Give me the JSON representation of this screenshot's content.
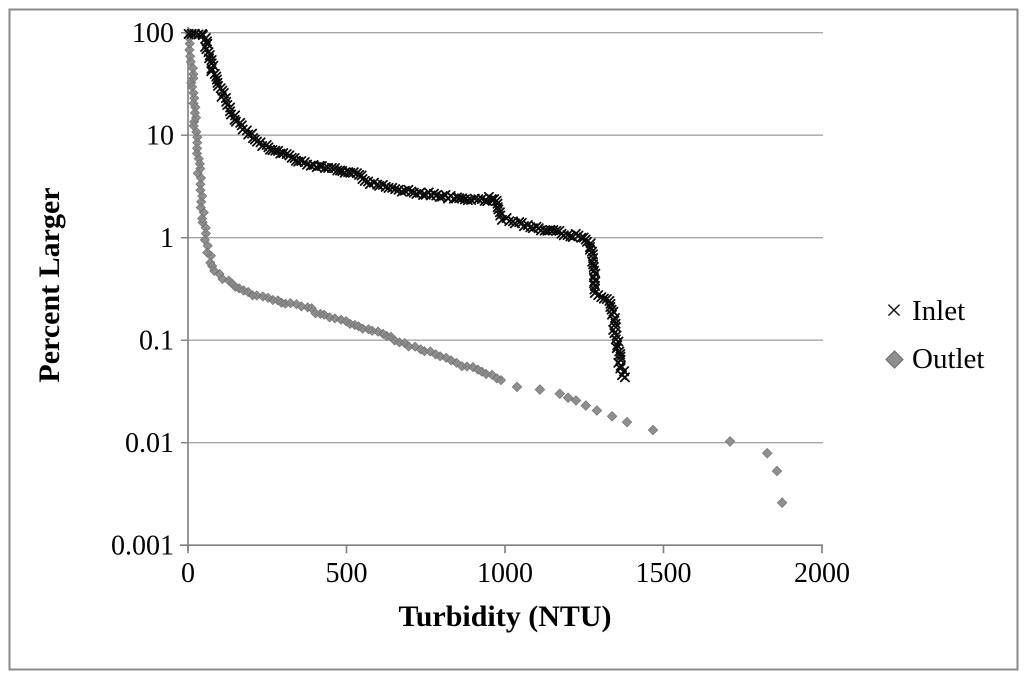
{
  "chart_data": {
    "type": "scatter",
    "title": "",
    "xlabel": "Turbidity (NTU)",
    "ylabel": "Percent Larger",
    "x_axis": {
      "min": 0,
      "max": 2000,
      "scale": "linear",
      "ticks": [
        {
          "label": "0",
          "value": 0
        },
        {
          "label": "500",
          "value": 500
        },
        {
          "label": "1000",
          "value": 1000
        },
        {
          "label": "1500",
          "value": 1500
        },
        {
          "label": "2000",
          "value": 2000
        }
      ]
    },
    "y_axis": {
      "min": 0.001,
      "max": 100,
      "scale": "log",
      "ticks": [
        {
          "label": "100",
          "value": 100
        },
        {
          "label": "10",
          "value": 10
        },
        {
          "label": "1",
          "value": 1
        },
        {
          "label": "0.1",
          "value": 0.1
        },
        {
          "label": "0.01",
          "value": 0.01
        },
        {
          "label": "0.001",
          "value": 0.001
        }
      ]
    },
    "grid": "horizontal-major",
    "legend_position": "right-middle",
    "colors": {
      "inlet": "#0b0b0b",
      "outlet": "#8f8f8f",
      "outlet_edge": "#747474",
      "gridline": "#a6a6a6",
      "axis": "#7f7f7f",
      "frame": "#8a8a8a",
      "text": "#000000"
    },
    "series": [
      {
        "name": "Inlet",
        "marker": "x",
        "marker_glyph": "×",
        "color": "#0b0b0b",
        "style": "dense-band",
        "points": [
          [
            2,
            100
          ],
          [
            48,
            100
          ],
          [
            57,
            78
          ],
          [
            69,
            54
          ],
          [
            85,
            37
          ],
          [
            101,
            28
          ],
          [
            132,
            17.6
          ],
          [
            164,
            12.6
          ],
          [
            196,
            10.2
          ],
          [
            227,
            8.4
          ],
          [
            259,
            7.5
          ],
          [
            290,
            6.8
          ],
          [
            322,
            6.1
          ],
          [
            353,
            5.6
          ],
          [
            385,
            5.2
          ],
          [
            420,
            4.9
          ],
          [
            460,
            4.6
          ],
          [
            505,
            4.3
          ],
          [
            535,
            4.15
          ],
          [
            552,
            3.8
          ],
          [
            568,
            3.45
          ],
          [
            620,
            3.1
          ],
          [
            680,
            2.9
          ],
          [
            730,
            2.75
          ],
          [
            817,
            2.5
          ],
          [
            880,
            2.38
          ],
          [
            930,
            2.3
          ],
          [
            952,
            2.42
          ],
          [
            968,
            2.35
          ],
          [
            978,
            2.0
          ],
          [
            990,
            1.55
          ],
          [
            1010,
            1.47
          ],
          [
            1070,
            1.3
          ],
          [
            1133,
            1.18
          ],
          [
            1200,
            1.08
          ],
          [
            1255,
            1.0
          ],
          [
            1268,
            0.9
          ],
          [
            1274,
            0.6
          ],
          [
            1282,
            0.42
          ],
          [
            1290,
            0.28
          ],
          [
            1310,
            0.27
          ],
          [
            1325,
            0.25
          ],
          [
            1335,
            0.21
          ],
          [
            1345,
            0.14
          ],
          [
            1355,
            0.09
          ],
          [
            1362,
            0.062
          ],
          [
            1371,
            0.048
          ],
          [
            1378,
            0.042
          ]
        ]
      },
      {
        "name": "Outlet",
        "marker": "diamond",
        "marker_glyph": "◆",
        "color": "#8f8f8f",
        "style": "dense-then-sparse",
        "points": [
          [
            6,
            100
          ],
          [
            10,
            62
          ],
          [
            13,
            40
          ],
          [
            16,
            27
          ],
          [
            20,
            16
          ],
          [
            25,
            10
          ],
          [
            31,
            6
          ],
          [
            38,
            3.4
          ],
          [
            45,
            1.9
          ],
          [
            55,
            1.05
          ],
          [
            62,
            0.78
          ],
          [
            72,
            0.58
          ],
          [
            88,
            0.46
          ],
          [
            110,
            0.41
          ],
          [
            123,
            0.38
          ],
          [
            148,
            0.345
          ],
          [
            186,
            0.295
          ],
          [
            221,
            0.266
          ],
          [
            290,
            0.238
          ],
          [
            344,
            0.222
          ],
          [
            385,
            0.212
          ],
          [
            407,
            0.182
          ],
          [
            448,
            0.167
          ],
          [
            502,
            0.147
          ],
          [
            552,
            0.131
          ],
          [
            606,
            0.116
          ],
          [
            659,
            0.099
          ],
          [
            710,
            0.085
          ],
          [
            763,
            0.075
          ],
          [
            817,
            0.066
          ],
          [
            868,
            0.057
          ],
          [
            921,
            0.051
          ],
          [
            968,
            0.045
          ],
          [
            1000,
            0.04
          ]
        ],
        "sparse_points": [
          [
            1038,
            0.035
          ],
          [
            1110,
            0.033
          ],
          [
            1173,
            0.03
          ],
          [
            1199,
            0.0275
          ],
          [
            1224,
            0.0258
          ],
          [
            1255,
            0.023
          ],
          [
            1290,
            0.0206
          ],
          [
            1338,
            0.0181
          ],
          [
            1385,
            0.0159
          ],
          [
            1467,
            0.0133
          ],
          [
            1710,
            0.0103
          ],
          [
            1827,
            0.0079
          ],
          [
            1858,
            0.0053
          ],
          [
            1874,
            0.0026
          ]
        ]
      }
    ]
  }
}
